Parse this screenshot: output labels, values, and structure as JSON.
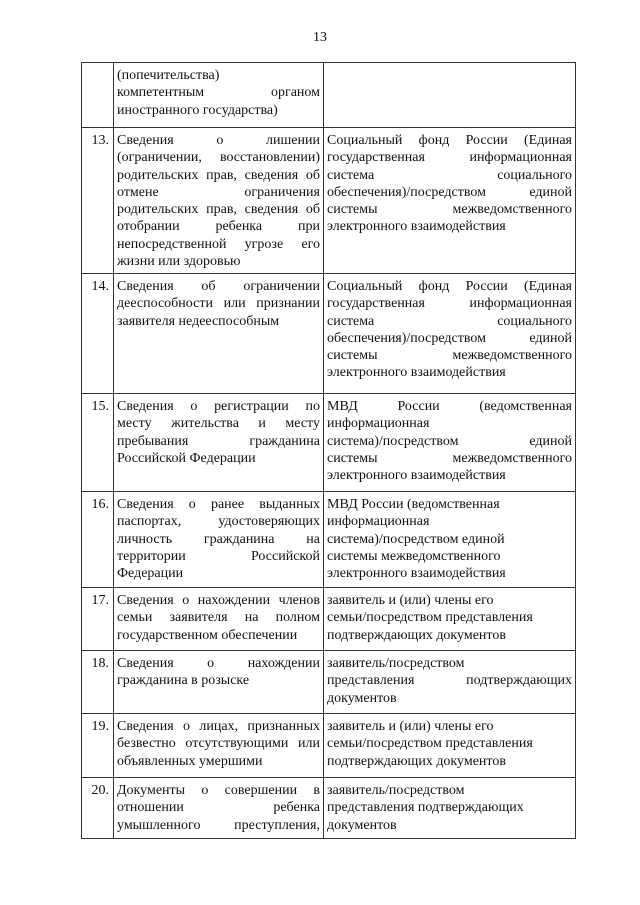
{
  "page_number": "13",
  "rows": [
    {
      "num": "",
      "left": [
        "(попечительства)",
        "компетентным органом",
        "иностранного государства)"
      ],
      "right": [],
      "right_ragged": false,
      "left_full": false
    },
    {
      "num": "13.",
      "left": [
        "Сведения о лишении",
        "(ограничении, восстановлении)",
        "родительских прав, сведения об",
        "отмене ограничения",
        "родительских прав, сведения об",
        "отобрании ребенка при",
        "непосредственной угрозе его",
        "жизни или здоровью"
      ],
      "right": [
        "Социальный фонд России (Единая",
        "государственная информационная",
        "система социального",
        "обеспечения)/посредством единой",
        "системы межведомственного",
        "электронного взаимодействия"
      ],
      "right_ragged": false,
      "left_full": false
    },
    {
      "num": "14.",
      "left": [
        "Сведения об ограничении",
        "дееспособности или признании",
        "заявителя недееспособным"
      ],
      "right": [
        "Социальный фонд России (Единая",
        "государственная информационная",
        "система социального",
        "обеспечения)/посредством единой",
        "системы межведомственного",
        "электронного взаимодействия"
      ],
      "right_ragged": false,
      "left_full": false
    },
    {
      "num": "15.",
      "left": [
        "Сведения о регистрации по",
        "месту жительства и месту",
        "пребывания гражданина",
        "Российской Федерации"
      ],
      "right": [
        "МВД России (ведомственная",
        "информационная",
        "система)/посредством единой",
        "системы межведомственного",
        "электронного взаимодействия"
      ],
      "right_ragged": false,
      "left_full": false
    },
    {
      "num": "16.",
      "left": [
        "Сведения о ранее выданных",
        "паспортах, удостоверяющих",
        "личность гражданина на",
        "территории Российской",
        "Федерации"
      ],
      "right": [
        "МВД России (ведомственная",
        "информационная",
        "система)/посредством единой",
        "системы межведомственного",
        "электронного взаимодействия"
      ],
      "right_ragged": true,
      "left_full": false
    },
    {
      "num": "17.",
      "left": [
        "Сведения о нахождении членов",
        "семьи заявителя на полном",
        "государственном обеспечении"
      ],
      "right": [
        "заявитель и (или) члены его",
        "семьи/посредством представления",
        "подтверждающих документов"
      ],
      "right_ragged": true,
      "left_full": false
    },
    {
      "num": "18.",
      "left": [
        "Сведения о нахождении",
        "гражданина в розыске"
      ],
      "right": [
        "заявитель/посредством",
        "представления подтверждающих",
        "документов"
      ],
      "right_ragged": false,
      "left_full": false
    },
    {
      "num": "19.",
      "left": [
        "Сведения о лицах, признанных",
        "безвестно отсутствующими или",
        "объявленных умершими"
      ],
      "right": [
        "заявитель и (или) члены его",
        "семьи/посредством представления",
        "подтверждающих документов"
      ],
      "right_ragged": true,
      "left_full": false
    },
    {
      "num": "20.",
      "left": [
        "Документы о совершении в",
        "отношении ребенка",
        "умышленного преступления,"
      ],
      "right": [
        "заявитель/посредством",
        "представления подтверждающих",
        "документов"
      ],
      "right_ragged": true,
      "left_full": true
    }
  ]
}
